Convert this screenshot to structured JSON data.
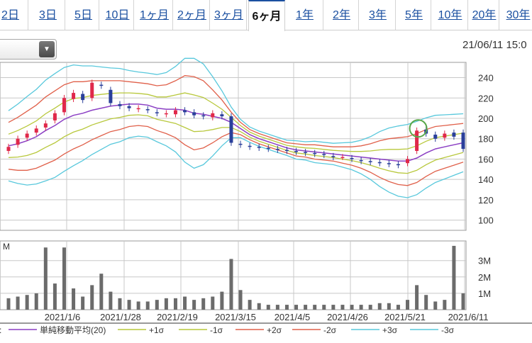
{
  "tabs": [
    "2日",
    "3日",
    "5日",
    "10日",
    "1ヶ月",
    "2ヶ月",
    "3ヶ月",
    "6ヶ月",
    "1年",
    "2年",
    "3年",
    "5年",
    "10年",
    "20年",
    "30年"
  ],
  "active_tab": "6ヶ月",
  "dropdown_icon": "triangle-down-icon",
  "timestamp": "21/06/11 15:0",
  "chart_data": {
    "type": "candlestick",
    "price_axis": {
      "ticks": [
        100,
        120,
        140,
        160,
        180,
        200,
        220,
        240
      ],
      "range": [
        90,
        255
      ]
    },
    "volume_axis": {
      "unit_label": "M",
      "ticks": [
        "1M",
        "2M",
        "3M"
      ],
      "tick_values": [
        1,
        2,
        3
      ],
      "range": [
        0,
        4.2
      ]
    },
    "x_tick_labels": [
      "2021/1/6",
      "2021/1/28",
      "2021/2/19",
      "2021/3/15",
      "2021/4/5",
      "2021/4/26",
      "2021/5/21",
      "2021/6/11"
    ],
    "sma20": [
      173,
      175,
      178,
      182,
      188,
      193,
      199,
      203,
      205,
      208,
      210,
      212,
      213,
      214,
      214,
      213,
      210,
      209,
      209,
      208,
      205,
      204,
      202,
      200,
      196,
      190,
      184,
      180,
      177,
      174,
      171,
      169,
      168,
      167,
      166,
      165,
      164,
      163,
      162,
      161,
      160,
      159,
      158,
      158,
      161,
      166,
      170,
      172,
      174,
      176
    ],
    "band_width": [
      23,
      26,
      29,
      31,
      33,
      34,
      34,
      33,
      31,
      29,
      27,
      25,
      24,
      22,
      21,
      21,
      22,
      24,
      28,
      34,
      36,
      33,
      26,
      18,
      10,
      6,
      5,
      5,
      5,
      5,
      5,
      6,
      6,
      7,
      7,
      7,
      8,
      9,
      11,
      14,
      18,
      21,
      23,
      24,
      24,
      23,
      22,
      21,
      20,
      19
    ],
    "close": [
      172,
      180,
      185,
      190,
      195,
      205,
      220,
      225,
      218,
      235,
      232,
      215,
      212,
      210,
      210,
      208,
      205,
      205,
      208,
      206,
      203,
      202,
      205,
      202,
      176,
      174,
      172,
      171,
      170,
      169,
      168,
      167,
      166,
      165,
      164,
      162,
      162,
      160,
      158,
      157,
      156,
      155,
      154,
      160,
      188,
      185,
      180,
      185,
      182,
      170
    ],
    "open": [
      168,
      174,
      181,
      186,
      191,
      198,
      206,
      219,
      224,
      220,
      233,
      228,
      214,
      212,
      209,
      209,
      206,
      204,
      204,
      208,
      206,
      203,
      201,
      204,
      202,
      175,
      173,
      172,
      171,
      170,
      169,
      168,
      167,
      166,
      165,
      163,
      162,
      161,
      159,
      158,
      157,
      156,
      155,
      156,
      168,
      189,
      184,
      181,
      186,
      186
    ],
    "volume": [
      0.7,
      0.8,
      0.9,
      1.0,
      3.8,
      1.6,
      3.8,
      1.3,
      0.8,
      1.5,
      2.2,
      1.1,
      0.7,
      0.6,
      0.5,
      0.5,
      0.6,
      0.7,
      0.7,
      0.8,
      0.6,
      0.7,
      0.8,
      1.1,
      3.1,
      1.2,
      0.6,
      0.4,
      0.3,
      0.3,
      0.3,
      0.3,
      0.3,
      0.3,
      0.3,
      0.3,
      0.3,
      0.3,
      0.3,
      0.3,
      0.4,
      0.4,
      0.3,
      0.6,
      1.5,
      0.9,
      0.5,
      0.6,
      3.9,
      1.0
    ],
    "legend": [
      {
        "label": "単純移動平均(20)",
        "color": "#8b3fc4"
      },
      {
        "label": "+1σ",
        "color": "#b8c83c"
      },
      {
        "label": "-1σ",
        "color": "#b8c83c"
      },
      {
        "label": "+2σ",
        "color": "#e0604a"
      },
      {
        "label": "-2σ",
        "color": "#e0604a"
      },
      {
        "label": "+3σ",
        "color": "#58c8dc"
      },
      {
        "label": "-3σ",
        "color": "#58c8dc"
      }
    ],
    "colors": {
      "up": "#e0284a",
      "down": "#2a3f9a",
      "volume": "#6b6b6b",
      "grid": "#c8c8c8",
      "highlight": "#5aa84a"
    },
    "highlight_index": 44,
    "grid": true,
    "legend_placement": "bottom"
  }
}
